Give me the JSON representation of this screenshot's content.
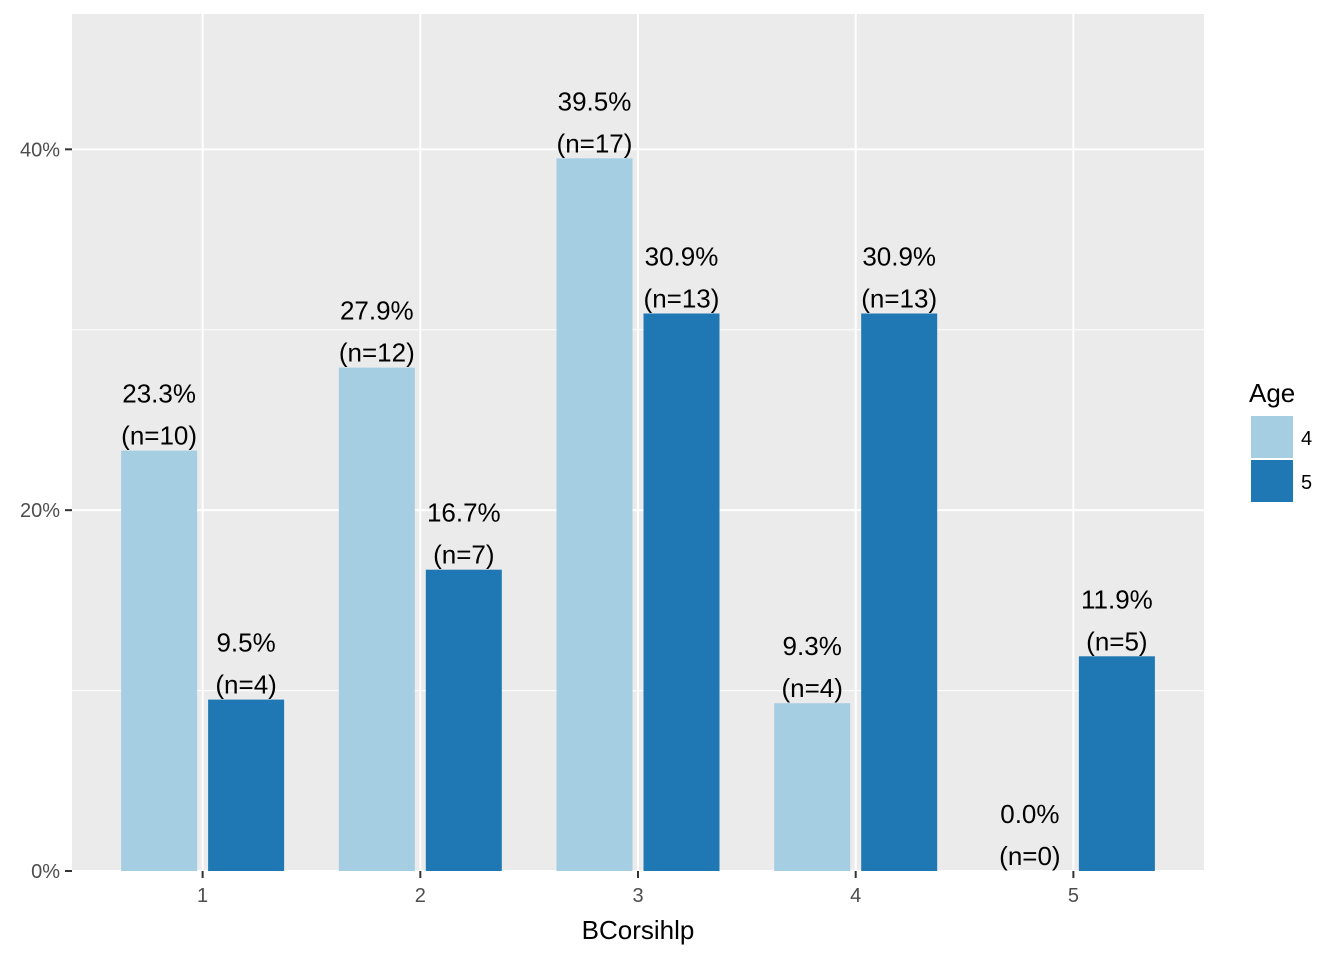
{
  "chart_data": {
    "type": "bar",
    "title": "",
    "xlabel": "BCorsihlp",
    "ylabel": "",
    "categories": [
      "1",
      "2",
      "3",
      "4",
      "5"
    ],
    "y_ticks": [
      {
        "value": 0,
        "label": "0%"
      },
      {
        "value": 20,
        "label": "20%"
      },
      {
        "value": 40,
        "label": "40%"
      }
    ],
    "ylim": [
      0,
      47.5
    ],
    "grid": true,
    "legend": {
      "title": "Age",
      "placement": "right"
    },
    "series": [
      {
        "name": "4",
        "color": "#a6cee3",
        "values": [
          23.3,
          27.9,
          39.5,
          9.3,
          0.0
        ],
        "percent_labels": [
          "23.3%",
          "27.9%",
          "39.5%",
          "9.3%",
          "0.0%"
        ],
        "count_labels": [
          "(n=10)",
          "(n=12)",
          "(n=17)",
          "(n=4)",
          "(n=0)"
        ]
      },
      {
        "name": "5",
        "color": "#1f78b4",
        "values": [
          9.5,
          16.7,
          30.9,
          30.9,
          11.9
        ],
        "percent_labels": [
          "9.5%",
          "16.7%",
          "30.9%",
          "30.9%",
          "11.9%"
        ],
        "count_labels": [
          "(n=4)",
          "(n=7)",
          "(n=13)",
          "(n=13)",
          "(n=5)"
        ]
      }
    ],
    "panel_background": "#ebebeb",
    "grid_color": "#ffffff"
  }
}
